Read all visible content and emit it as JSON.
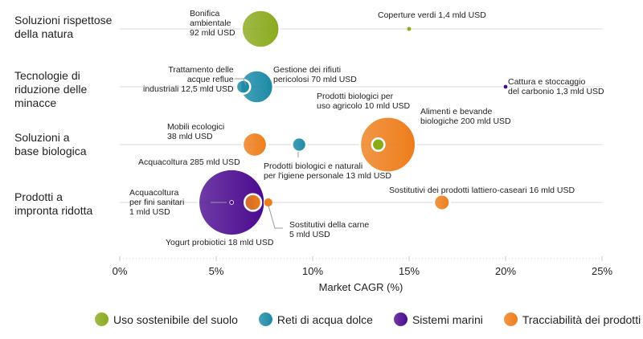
{
  "chart_data": {
    "type": "scatter",
    "xlabel": "Market CAGR (%)",
    "xlim": [
      0,
      25
    ],
    "x_ticks": [
      "0%",
      "5%",
      "10%",
      "15%",
      "20%",
      "25%"
    ],
    "categories": [
      "Soluzioni rispettose della natura",
      "Tecnologie di riduzione delle minacce",
      "Soluzioni a base biologica",
      "Prodotti a impronta ridotta"
    ],
    "category_lines": [
      [
        "Soluzioni rispettose",
        "della natura"
      ],
      [
        "Tecnologie di",
        "riduzione delle",
        "minacce"
      ],
      [
        "Soluzioni a",
        "base biologica"
      ],
      [
        "Prodotti a",
        "impronta ridotta"
      ]
    ],
    "series": [
      {
        "name": "Uso sostenibile del suolo",
        "color": "#8aaa1c"
      },
      {
        "name": "Reti di acqua dolce",
        "color": "#1a8aa6"
      },
      {
        "name": "Sistemi marini",
        "color": "#4b0a8f"
      },
      {
        "name": "Tracciabilità dei prodotti",
        "color": "#ee7d1b"
      }
    ],
    "points": [
      {
        "category": 0,
        "series": 0,
        "x": 7.3,
        "size": 92,
        "label": [
          "Bonifica",
          "ambientale",
          "92 mld USD"
        ]
      },
      {
        "category": 0,
        "series": 0,
        "x": 15.0,
        "size": 1.4,
        "label": [
          "Coperture verdi 1,4 mld USD"
        ]
      },
      {
        "category": 1,
        "series": 1,
        "x": 7.1,
        "size": 70,
        "label": [
          "Gestione dei rifiuti",
          "pericolosi 70 mld USD"
        ]
      },
      {
        "category": 1,
        "series": 1,
        "x": 6.4,
        "size": 12.5,
        "label": [
          "Trattamento delle",
          "acque reflue",
          "industriali 12,5 mld USD"
        ]
      },
      {
        "category": 1,
        "series": 2,
        "x": 20.0,
        "size": 1.3,
        "label": [
          "Cattura e stoccaggio",
          "del carbonio 1,3 mld USD"
        ]
      },
      {
        "category": 2,
        "series": 3,
        "x": 13.9,
        "size": 200,
        "label": [
          "Alimenti e bevande",
          "biologiche 200 mld USD"
        ]
      },
      {
        "category": 2,
        "series": 0,
        "x": 13.4,
        "size": 10,
        "label": [
          "Prodotti biologici per",
          "uso agricolo 10 mld USD"
        ]
      },
      {
        "category": 2,
        "series": 3,
        "x": 7.0,
        "size": 38,
        "label": [
          "Mobili ecologici",
          "38 mld USD"
        ]
      },
      {
        "category": 2,
        "series": 1,
        "x": 9.3,
        "size": 13,
        "label": [
          "Prodotti biologici e naturali",
          "per l'igiene personale 13 mld USD"
        ]
      },
      {
        "category": 3,
        "series": 2,
        "x": 5.8,
        "size": 285,
        "label": [
          "Acquacoltura 285 mld USD"
        ]
      },
      {
        "category": 3,
        "series": 2,
        "x": 5.8,
        "size": 1,
        "label": [
          "Acquacoltura",
          "per fini sanitari",
          "1 mld USD"
        ]
      },
      {
        "category": 3,
        "series": 3,
        "x": 6.9,
        "size": 18,
        "label": [
          "Yogurt probiotici 18 mld USD"
        ]
      },
      {
        "category": 3,
        "series": 3,
        "x": 7.7,
        "size": 5,
        "label": [
          "Sostitutivi della carne",
          "5 mld USD"
        ]
      },
      {
        "category": 3,
        "series": 3,
        "x": 16.7,
        "size": 16,
        "label": [
          "Sostitutivi dei prodotti lattiero-caseari 16 mld USD"
        ]
      }
    ]
  }
}
